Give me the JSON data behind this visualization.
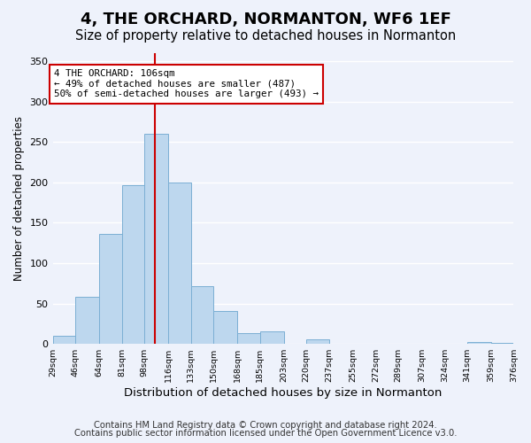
{
  "title": "4, THE ORCHARD, NORMANTON, WF6 1EF",
  "subtitle": "Size of property relative to detached houses in Normanton",
  "xlabel": "Distribution of detached houses by size in Normanton",
  "ylabel": "Number of detached properties",
  "bar_color": "#bdd7ee",
  "bar_edge_color": "#7bafd4",
  "vline_color": "#cc0000",
  "vline_x": 106,
  "bins": [
    29,
    46,
    64,
    81,
    98,
    116,
    133,
    150,
    168,
    185,
    203,
    220,
    237,
    255,
    272,
    289,
    307,
    324,
    341,
    359,
    376
  ],
  "bin_labels": [
    "29sqm",
    "46sqm",
    "64sqm",
    "81sqm",
    "98sqm",
    "116sqm",
    "133sqm",
    "150sqm",
    "168sqm",
    "185sqm",
    "203sqm",
    "220sqm",
    "237sqm",
    "255sqm",
    "272sqm",
    "289sqm",
    "307sqm",
    "324sqm",
    "341sqm",
    "359sqm",
    "376sqm"
  ],
  "bar_heights": [
    10,
    58,
    136,
    196,
    260,
    200,
    71,
    41,
    13,
    15,
    0,
    6,
    0,
    0,
    0,
    0,
    0,
    0,
    2,
    1
  ],
  "ylim": [
    0,
    360
  ],
  "yticks": [
    0,
    50,
    100,
    150,
    200,
    250,
    300,
    350
  ],
  "annotation_title": "4 THE ORCHARD: 106sqm",
  "annotation_line1": "← 49% of detached houses are smaller (487)",
  "annotation_line2": "50% of semi-detached houses are larger (493) →",
  "annotation_box_color": "#ffffff",
  "annotation_box_edge": "#cc0000",
  "background_color": "#eef2fb",
  "footnote1": "Contains HM Land Registry data © Crown copyright and database right 2024.",
  "footnote2": "Contains public sector information licensed under the Open Government Licence v3.0.",
  "grid_color": "#ffffff",
  "title_fontsize": 13,
  "subtitle_fontsize": 10.5,
  "xlabel_fontsize": 9.5,
  "ylabel_fontsize": 8.5,
  "footnote_fontsize": 7.2
}
